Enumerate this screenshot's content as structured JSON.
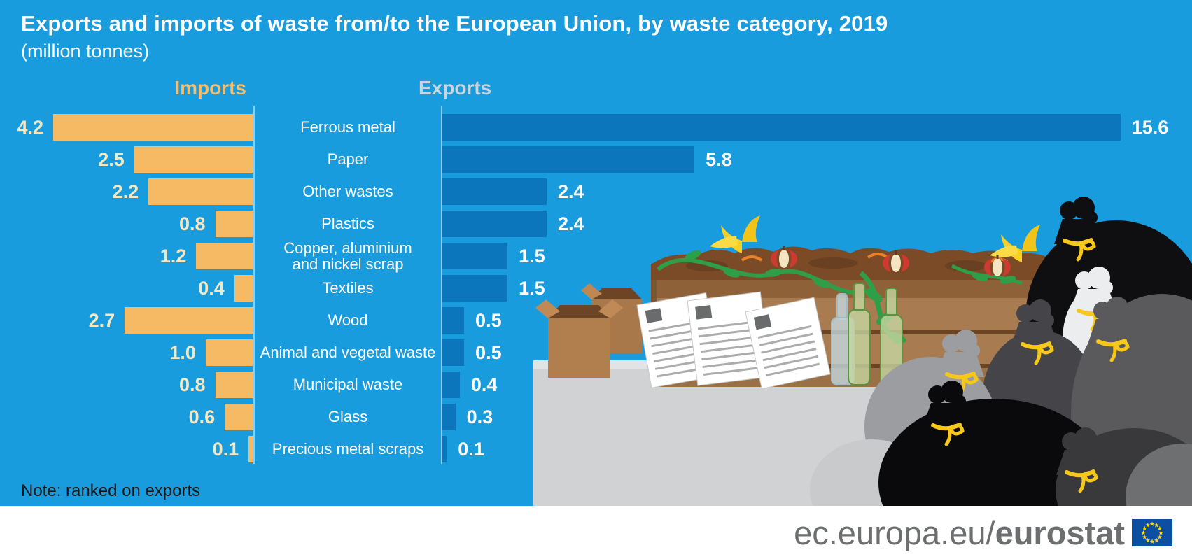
{
  "title": "Exports and imports of waste from/to the European Union, by waste category, 2019",
  "subtitle": "(million tonnes)",
  "headers": {
    "imports": "Imports",
    "exports": "Exports"
  },
  "note": "Note: ranked on exports",
  "footer": {
    "url_prefix": "ec.europa.eu/",
    "url_bold": "eurostat"
  },
  "colors": {
    "background": "#189CDE",
    "import_bar": "#F6B964",
    "export_bar": "#0C76BC",
    "import_value_label": "#F4E7C3",
    "export_value_label": "#FFFFFF",
    "imports_header": "#F2BE71",
    "exports_header": "#C7D5DF",
    "footer_text": "#6D6E70",
    "eu_flag_blue": "#0B4EA2",
    "eu_flag_stars": "#FFD617"
  },
  "chart_data": {
    "type": "bar",
    "orientation": "horizontal-diverging",
    "title": "Exports and imports of waste from/to the European Union, by waste category, 2019",
    "unit": "million tonnes",
    "ranked_on": "exports",
    "legend_position": "column headers above bars",
    "grid": false,
    "categories": [
      "Ferrous metal",
      "Paper",
      "Other wastes",
      "Plastics",
      "Copper, aluminium\nand nickel scrap",
      "Textiles",
      "Wood",
      "Animal and vegetal waste",
      "Municipal waste",
      "Glass",
      "Precious metal scraps"
    ],
    "series": [
      {
        "name": "Imports",
        "side": "left",
        "color": "#F6B964",
        "values": [
          4.2,
          2.5,
          2.2,
          0.8,
          1.2,
          0.4,
          2.7,
          1.0,
          0.8,
          0.6,
          0.1
        ],
        "labels": [
          "4.2",
          "2.5",
          "2.2",
          "0.8",
          "1.2",
          "0.4",
          "2.7",
          "1.0",
          "0.8",
          "0.6",
          "0.1"
        ]
      },
      {
        "name": "Exports",
        "side": "right",
        "color": "#0C76BC",
        "values": [
          15.6,
          5.8,
          2.4,
          2.4,
          1.5,
          1.5,
          0.5,
          0.5,
          0.4,
          0.3,
          0.1
        ],
        "labels": [
          "15.6",
          "5.8",
          "2.4",
          "2.4",
          "1.5",
          "1.5",
          "0.5",
          "0.5",
          "0.4",
          "0.3",
          "0.1"
        ]
      }
    ],
    "xlim_imports": [
      0,
      4.5
    ],
    "xlim_exports": [
      0,
      16
    ]
  },
  "illustration": {
    "description": "waste illustration: compost crate with organic waste, cardboard boxes, paper stacks, glass bottles on a grey container, black and grey trash bags with yellow ties",
    "elements": [
      "compost-crate-icon",
      "banana-peel-icon",
      "apple-core-icon",
      "vine-icon",
      "orange-peel-icon",
      "cardboard-box-icon",
      "paper-stack-icon",
      "glass-bottle-icon",
      "container-platform-icon",
      "trash-bag-icon",
      "eu-flag-icon"
    ]
  }
}
